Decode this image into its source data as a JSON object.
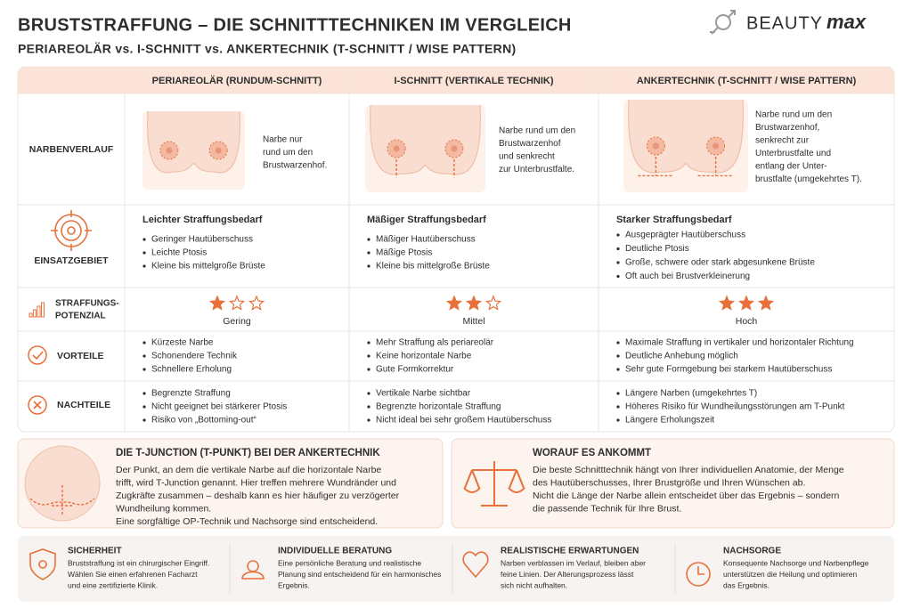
{
  "header": {
    "title": "BRUSTSTRAFFUNG – DIE SCHNITTTECHNIKEN IM VERGLEICH",
    "subtitle": "PERIAREOLÄR vs. I-SCHNITT vs. ANKERTECHNIK (T-SCHNITT / WISE PATTERN)",
    "logo": [
      "BEAUTY",
      "max"
    ]
  },
  "table": {
    "columns": [
      "PERIAREOLÄR (RUNDUM-SCHNITT)",
      "I-SCHNITT (VERTIKALE TECHNIK)",
      "ANKERTECHNIK  (T-SCHNITT / WISE PATTERN)"
    ],
    "row_labels": [
      [
        "NARBENVERLAUF"
      ],
      [
        "EINSATZGEBIET"
      ],
      [
        "STRAFFUNGS-",
        "POTENZIAL"
      ],
      [
        "VORTEILE"
      ],
      [
        "NACHTEILE"
      ]
    ],
    "scars": [
      [
        "Narbe nur",
        "rund um den",
        "Brustwarzenhof."
      ],
      [
        "Narbe rund um den",
        "Brustwarzenhof",
        "und senkrecht",
        "zur Unterbrustfalte."
      ],
      [
        "Narbe rund um den",
        "Brustwarzenhof,",
        "senkrecht zur",
        "Unterbrustfalte und",
        "entlang der Unter-",
        "brustfalte (umgekehrtes T)."
      ]
    ],
    "indications": [
      {
        "heading": "Leichter Straffungsbedarf",
        "bullets": [
          "Geringer Hautüberschuss",
          "Leichte Ptosis",
          "Kleine bis mittelgroße Brüste"
        ]
      },
      {
        "heading": "Mäßiger Straffungsbedarf",
        "bullets": [
          "Mäßiger Hautüberschuss",
          "Mäßige Ptosis",
          "Kleine bis mittelgroße Brüste"
        ]
      },
      {
        "heading": "Starker Straffungsbedarf",
        "bullets": [
          "Ausgeprägter Hautüberschuss",
          "Deutliche Ptosis",
          "Große, schwere oder stark abgesunkene Brüste",
          "Oft auch bei Brustverkleinerung"
        ]
      }
    ],
    "potential": [
      {
        "rating": 1,
        "label": "Gering"
      },
      {
        "rating": 2,
        "label": "Mittel"
      },
      {
        "rating": 3,
        "label": "Hoch"
      }
    ],
    "advantages": [
      [
        "Kürzeste Narbe",
        "Schonendere Technik",
        "Schnellere Erholung"
      ],
      [
        "Mehr Straffung als periareolär",
        "Keine horizontale Narbe",
        "Gute Formkorrektur"
      ],
      [
        "Maximale Straffung in vertikaler und horizontaler Richtung",
        "Deutliche Anhebung möglich",
        "Sehr gute Formgebung bei starkem Hautüberschuss"
      ]
    ],
    "disadvantages": [
      [
        "Begrenzte Straffung",
        "Nicht geeignet bei stärkerer Ptosis",
        "Risiko von „Bottoming-out“"
      ],
      [
        "Vertikale Narbe sichtbar",
        "Begrenzte horizontale Straffung",
        "Nicht ideal bei sehr großem Hautüberschuss"
      ],
      [
        "Längere Narben (umgekehrtes T)",
        "Höheres Risiko für Wundheilungsstörungen am T-Punkt",
        "Längere Erholungszeit"
      ]
    ]
  },
  "info_boxes": [
    {
      "title": "DIE T-JUNCTION (T-PUNKT) BEI DER ANKERTECHNIK",
      "lines": [
        "Der Punkt, an dem die vertikale Narbe auf die horizontale Narbe",
        "trifft, wird T-Junction genannt. Hier treffen mehrere Wundränder und",
        "Zugkräfte zusammen – deshalb kann es hier häufiger zu verzögerter",
        "Wundheilung kommen.",
        "Eine sorgfältige OP-Technik und Nachsorge sind entscheidend."
      ]
    },
    {
      "title": "WORAUF ES ANKOMMT",
      "lines": [
        "Die beste Schnitttechnik hängt von Ihrer individuellen Anatomie, der Menge",
        "des Hautüberschusses, Ihrer Brustgröße und Ihren Wünschen ab.",
        "Nicht die Länge der Narbe allein entscheidet über das Ergebnis – sondern",
        "die passende Technik für Ihre Brust."
      ]
    }
  ],
  "footer": [
    {
      "title": "SICHERHEIT",
      "lines": [
        "Bruststraffung ist ein chirurgischer Eingriff.",
        "Wählen Sie einen erfahrenen Facharzt",
        "und eine zertifizierte Klinik."
      ]
    },
    {
      "title": "INDIVIDUELLE BERATUNG",
      "lines": [
        "Eine persönliche Beratung und realistische",
        "Planung sind entscheidend für ein harmonisches",
        "Ergebnis."
      ]
    },
    {
      "title": "REALISTISCHE ERWARTUNGEN",
      "lines": [
        "Narben verblassen im Verlauf, bleiben aber",
        "feine Linien. Der Alterungsprozess lässt",
        "sich nicht aufhalten."
      ]
    },
    {
      "title": "NACHSORGE",
      "lines": [
        "Konsequente Nachsorge und Narbenpflege",
        "unterstützen die Heilung und optimieren",
        "das Ergebnis."
      ]
    }
  ]
}
